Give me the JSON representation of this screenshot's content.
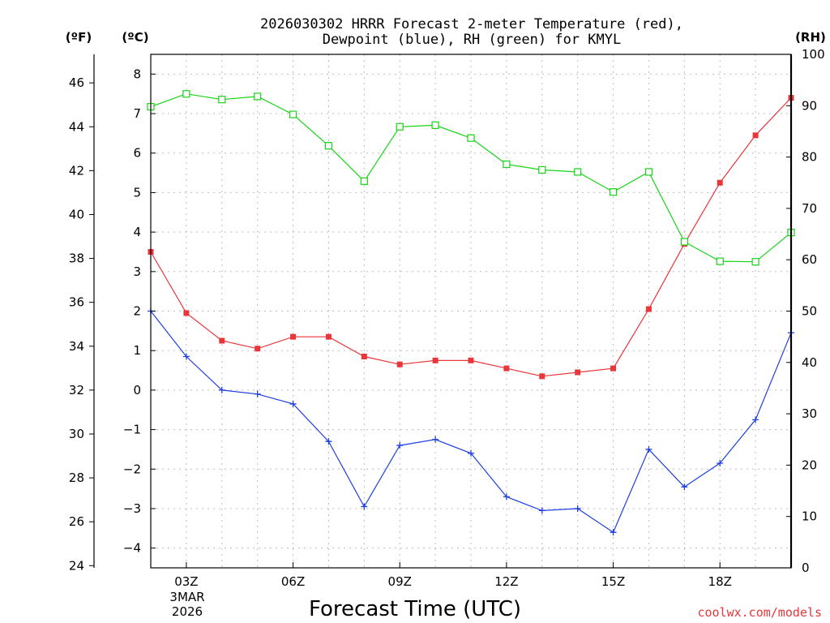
{
  "title_lines": [
    "2026030302 HRRR Forecast 2-meter Temperature (red),",
    "Dewpoint (blue), RH (green) for KMYL"
  ],
  "units": {
    "left_f": "(ºF)",
    "left_c": "(ºC)",
    "right_rh": "(RH)"
  },
  "xlabel": "Forecast Time (UTC)",
  "credit": "coolwx.com/models",
  "date_label": {
    "month_day": "3MAR",
    "year": "2026"
  },
  "colors": {
    "temperature": "#e8363a",
    "dewpoint": "#1f3fe0",
    "rh": "#16d416"
  },
  "chart_data": {
    "type": "line",
    "title": "2026030302 HRRR Forecast 2-meter Temperature (red), Dewpoint (blue), RH (green) for KMYL",
    "xlabel": "Forecast Time (UTC)",
    "x": [
      "02Z",
      "03Z",
      "04Z",
      "05Z",
      "06Z",
      "07Z",
      "08Z",
      "09Z",
      "10Z",
      "11Z",
      "12Z",
      "13Z",
      "14Z",
      "15Z",
      "16Z",
      "17Z",
      "18Z",
      "19Z",
      "20Z"
    ],
    "xticks": [
      "03Z",
      "06Z",
      "09Z",
      "12Z",
      "15Z",
      "18Z"
    ],
    "xlim_hours": [
      2,
      20
    ],
    "celsius_ylim": [
      -4.5,
      8.5
    ],
    "celsius_ticks": [
      -4,
      -3,
      -2,
      -1,
      0,
      1,
      2,
      3,
      4,
      5,
      6,
      7,
      8
    ],
    "fahrenheit_ticks": [
      24,
      26,
      28,
      30,
      32,
      34,
      36,
      38,
      40,
      42,
      44,
      46
    ],
    "rh_ylim": [
      0,
      100
    ],
    "rh_ticks": [
      0,
      10,
      20,
      30,
      40,
      50,
      60,
      70,
      80,
      90,
      100
    ],
    "series": [
      {
        "name": "Temperature",
        "axis": "celsius",
        "marker": "filled-square",
        "values": [
          3.5,
          1.95,
          1.25,
          1.05,
          1.35,
          1.35,
          0.85,
          0.65,
          0.75,
          0.75,
          0.55,
          0.35,
          0.45,
          0.55,
          2.05,
          3.7,
          5.25,
          6.45,
          7.4
        ]
      },
      {
        "name": "Dewpoint",
        "axis": "celsius",
        "marker": "plus",
        "values": [
          2.0,
          0.85,
          0.0,
          -0.1,
          -0.35,
          -1.3,
          -2.95,
          -1.4,
          -1.25,
          -1.6,
          -2.7,
          -3.05,
          -3.0,
          -3.6,
          -1.5,
          -2.45,
          -1.85,
          -0.75,
          1.45
        ]
      },
      {
        "name": "RH",
        "axis": "rh",
        "marker": "open-square",
        "values": [
          89.8,
          92.3,
          91.2,
          91.8,
          88.3,
          82.2,
          75.3,
          85.9,
          86.2,
          83.7,
          78.6,
          77.5,
          77.1,
          73.2,
          77.1,
          63.5,
          59.7,
          59.6,
          65.3
        ]
      }
    ]
  }
}
